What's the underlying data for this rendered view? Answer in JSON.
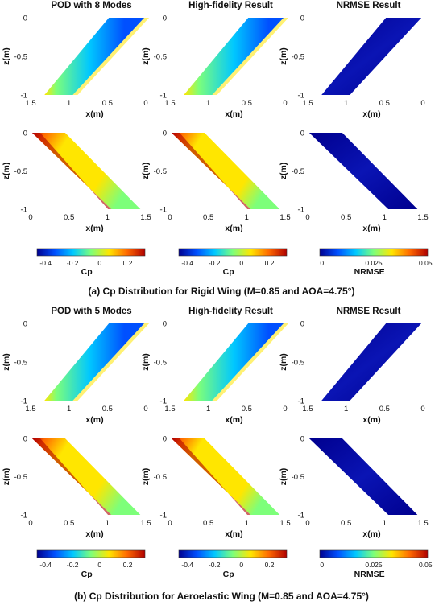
{
  "figure": {
    "colormap": [
      "#00008f",
      "#0050ff",
      "#00c8ff",
      "#7dff7a",
      "#ffe600",
      "#ff6a00",
      "#b00000"
    ],
    "sections": [
      {
        "caption": "(a) Cp Distribution for Rigid Wing (M=0.85 and AOA=4.75°)",
        "panels": [
          {
            "title": "POD with 8 Modes",
            "top": {
              "xlabel": "x(m)",
              "ylabel": "z(m)",
              "xticks": [
                "1.5",
                "1",
                "0.5",
                "0"
              ],
              "yticks": [
                "0",
                "-0.5",
                "-1"
              ]
            },
            "bottom": {
              "xlabel": "x(m)",
              "ylabel": "z(m)",
              "xticks": [
                "0",
                "0.5",
                "1",
                "1.5"
              ],
              "yticks": [
                "0",
                "-0.5",
                "-1"
              ]
            },
            "colorbar": {
              "label": "Cp",
              "ticks": [
                "-0.4",
                "-0.2",
                "0",
                "0.2"
              ]
            }
          },
          {
            "title": "High-fidelity Result",
            "top": {
              "xlabel": "x(m)",
              "ylabel": "z(m)",
              "xticks": [
                "1.5",
                "1",
                "0.5",
                "0"
              ],
              "yticks": [
                "0",
                "-0.5",
                "-1"
              ]
            },
            "bottom": {
              "xlabel": "x(m)",
              "ylabel": "z(m)",
              "xticks": [
                "0",
                "0.5",
                "1",
                "1.5"
              ],
              "yticks": [
                "0",
                "-0.5",
                "-1"
              ]
            },
            "colorbar": {
              "label": "Cp",
              "ticks": [
                "-0.4",
                "-0.2",
                "0",
                "0.2"
              ]
            }
          },
          {
            "title": "NRMSE Result",
            "top": {
              "xlabel": "x(m)",
              "ylabel": "z(m)",
              "xticks": [
                "1.5",
                "1",
                "0.5",
                "0"
              ],
              "yticks": [
                "0",
                "-0.5",
                "-1"
              ]
            },
            "bottom": {
              "xlabel": "x(m)",
              "ylabel": "z(m)",
              "xticks": [
                "0",
                "0.5",
                "1",
                "1.5"
              ],
              "yticks": [
                "0",
                "-0.5",
                "-1"
              ]
            },
            "colorbar": {
              "label": "NRMSE",
              "ticks": [
                "0",
                "0.025",
                "0.05"
              ]
            }
          }
        ]
      },
      {
        "caption": "(b) Cp Distribution for Aeroelastic Wing (M=0.85 and AOA=4.75°)",
        "panels": [
          {
            "title": "POD with 5 Modes",
            "top": {
              "xlabel": "x(m)",
              "ylabel": "z(m)",
              "xticks": [
                "1.5",
                "1",
                "0.5",
                "0"
              ],
              "yticks": [
                "0",
                "-0.5",
                "-1"
              ]
            },
            "bottom": {
              "xlabel": "x(m)",
              "ylabel": "z(m)",
              "xticks": [
                "0",
                "0.5",
                "1",
                "1.5"
              ],
              "yticks": [
                "0",
                "-0.5",
                "-1"
              ]
            },
            "colorbar": {
              "label": "Cp",
              "ticks": [
                "-0.4",
                "-0.2",
                "0",
                "0.2"
              ]
            }
          },
          {
            "title": "High-fidelity Result",
            "top": {
              "xlabel": "x(m)",
              "ylabel": "z(m)",
              "xticks": [
                "1.5",
                "1",
                "0.5",
                "0"
              ],
              "yticks": [
                "0",
                "-0.5",
                "-1"
              ]
            },
            "bottom": {
              "xlabel": "x(m)",
              "ylabel": "z(m)",
              "xticks": [
                "0",
                "0.5",
                "1",
                "1.5"
              ],
              "yticks": [
                "0",
                "-0.5",
                "-1"
              ]
            },
            "colorbar": {
              "label": "Cp",
              "ticks": [
                "-0.4",
                "-0.2",
                "0",
                "0.2"
              ]
            }
          },
          {
            "title": "NRMSE Result",
            "top": {
              "xlabel": "x(m)",
              "ylabel": "z(m)",
              "xticks": [
                "1.5",
                "1",
                "0.5",
                "0"
              ],
              "yticks": [
                "0",
                "-0.5",
                "-1"
              ]
            },
            "bottom": {
              "xlabel": "x(m)",
              "ylabel": "z(m)",
              "xticks": [
                "0",
                "0.5",
                "1",
                "1.5"
              ],
              "yticks": [
                "0",
                "-0.5",
                "-1"
              ]
            },
            "colorbar": {
              "label": "NRMSE",
              "ticks": [
                "0",
                "0.025",
                "0.05"
              ]
            }
          }
        ]
      }
    ]
  }
}
